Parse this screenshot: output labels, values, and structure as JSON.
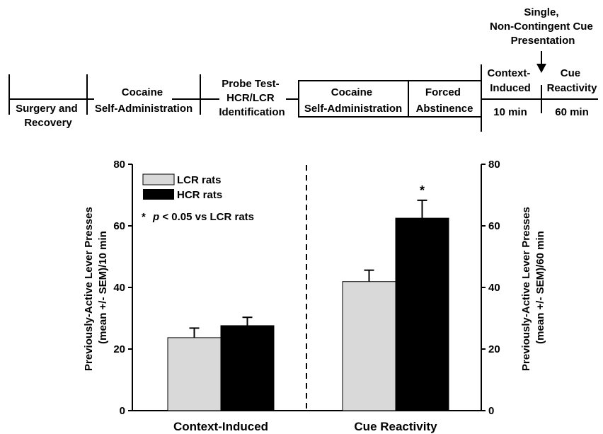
{
  "timeline": {
    "stages": [
      {
        "lines": [
          "Surgery and",
          "Recovery"
        ]
      },
      {
        "lines": [
          "Cocaine",
          "Self-Administration"
        ]
      },
      {
        "lines": [
          "Probe Test-",
          "HCR/LCR",
          "Identification"
        ]
      },
      {
        "lines": [
          "Cocaine",
          "Self-Administration"
        ]
      },
      {
        "lines": [
          "Forced",
          "Abstinence"
        ]
      },
      {
        "lines": [
          "Context-",
          "Induced"
        ],
        "duration": "10 min"
      },
      {
        "lines": [
          "Cue",
          "Reactivity"
        ],
        "duration": "60 min"
      }
    ],
    "cue_note": [
      "Single,",
      "Non-Contingent Cue",
      "Presentation"
    ]
  },
  "chart_data": {
    "type": "bar",
    "categories": [
      "Context-Induced",
      "Cue Reactivity"
    ],
    "series": [
      {
        "name": "LCR rats",
        "color": "#d9d9d9",
        "values": [
          23.7,
          41.9
        ],
        "errors": [
          3.1,
          3.7
        ]
      },
      {
        "name": "HCR rats",
        "color": "#000000",
        "values": [
          27.6,
          62.5
        ],
        "errors": [
          2.7,
          5.8
        ]
      }
    ],
    "significance": [
      {
        "category_index": 1,
        "series_index": 1,
        "marker": "*"
      }
    ],
    "annotation": {
      "star": "*",
      "p": "p",
      "rest": " < 0.05 vs LCR rats"
    },
    "ylabel_left": [
      "Previously-Active Lever Presses",
      "(mean +/- SEM)/10 min"
    ],
    "ylabel_right": [
      "Previously-Active Lever Presses",
      "(mean +/- SEM)/60 min"
    ],
    "ylim": [
      0,
      80
    ],
    "yticks": [
      0,
      20,
      40,
      60,
      80
    ],
    "legend_position": "top-left",
    "divider": "dashed line between categories"
  }
}
